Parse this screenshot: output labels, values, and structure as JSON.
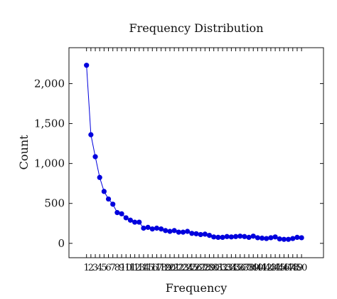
{
  "chart_data": {
    "type": "line",
    "title": "Frequency Distribution",
    "xlabel": "Frequency",
    "ylabel": "Count",
    "xlim": [
      -3,
      55
    ],
    "ylim": [
      -180,
      2450
    ],
    "grid": false,
    "legend": "none",
    "markers": true,
    "series_color": "#0000dd",
    "x_ticks": [
      1,
      2,
      3,
      4,
      5,
      6,
      7,
      8,
      9,
      10,
      11,
      12,
      13,
      14,
      15,
      16,
      17,
      18,
      19,
      20,
      21,
      22,
      23,
      24,
      25,
      26,
      27,
      28,
      29,
      30,
      31,
      32,
      33,
      34,
      35,
      36,
      37,
      38,
      39,
      40,
      41,
      42,
      43,
      44,
      45,
      46,
      47,
      48,
      49,
      50
    ],
    "x_tick_labels": [
      "1",
      "2",
      "3",
      "4",
      "5",
      "6",
      "7",
      "8",
      "9",
      "10",
      "11",
      "12",
      "13",
      "14",
      "15",
      "16",
      "17",
      "18",
      "19",
      "20",
      "21",
      "22",
      "23",
      "24",
      "25",
      "26",
      "27",
      "28",
      "29",
      "30",
      "31",
      "32",
      "33",
      "34",
      "35",
      "36",
      "37",
      "38",
      "39",
      "40",
      "41",
      "42",
      "43",
      "44",
      "45",
      "46",
      "47",
      "48",
      "49",
      "50"
    ],
    "y_ticks": [
      0,
      500,
      1000,
      1500,
      2000
    ],
    "y_tick_labels": [
      "0",
      "500",
      "1,000",
      "1,500",
      "2,000"
    ],
    "series": [
      {
        "x": [
          1,
          2,
          3,
          4,
          5,
          6,
          7,
          8,
          9,
          10,
          11,
          12,
          13,
          14,
          15,
          16,
          17,
          18,
          19,
          20,
          21,
          22,
          23,
          24,
          25,
          26,
          27,
          28,
          29,
          30,
          31,
          32,
          33,
          34,
          35,
          36,
          37,
          38,
          39,
          40,
          41,
          42,
          43,
          44,
          45,
          46,
          47,
          48,
          49,
          50
        ],
        "values": [
          2230,
          1360,
          1085,
          825,
          650,
          555,
          490,
          385,
          370,
          320,
          290,
          265,
          265,
          190,
          200,
          180,
          190,
          180,
          160,
          150,
          160,
          140,
          140,
          150,
          125,
          120,
          110,
          115,
          100,
          80,
          75,
          75,
          85,
          80,
          85,
          90,
          85,
          75,
          90,
          70,
          65,
          60,
          70,
          80,
          55,
          50,
          50,
          60,
          75,
          70
        ]
      }
    ]
  }
}
